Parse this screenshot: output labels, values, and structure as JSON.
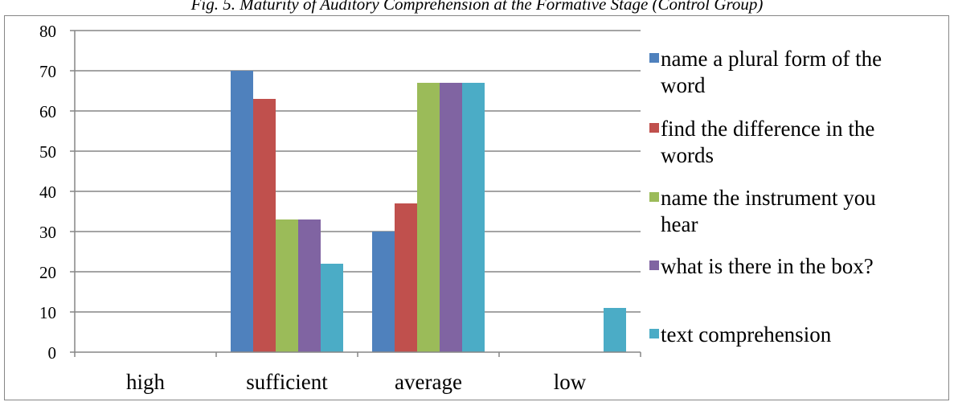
{
  "caption": "Fig. 5. Maturity of Auditory Comprehension at the Formative Stage (Control Group)",
  "chart_data": {
    "type": "bar",
    "title": "Fig. 5. Maturity of Auditory Comprehension at the Formative Stage (Control Group)",
    "xlabel": "",
    "ylabel": "",
    "categories": [
      "high",
      "sufficient",
      "average",
      "low"
    ],
    "ylim": [
      0,
      80
    ],
    "yticks": [
      0,
      10,
      20,
      30,
      40,
      50,
      60,
      70,
      80
    ],
    "grid": true,
    "legend_position": "right",
    "series": [
      {
        "name": "name a plural form of the word",
        "color": "#4F81BD",
        "values": [
          0,
          70,
          30,
          0
        ]
      },
      {
        "name": "find the difference in the words",
        "color": "#C0504D",
        "values": [
          0,
          63,
          37,
          0
        ]
      },
      {
        "name": "name the instrument you hear",
        "color": "#9BBB59",
        "values": [
          0,
          33,
          67,
          0
        ]
      },
      {
        "name": "what is there in the box?",
        "color": "#8064A2",
        "values": [
          0,
          33,
          67,
          0
        ]
      },
      {
        "name": "text comprehension",
        "color": "#4BACC6",
        "values": [
          0,
          22,
          67,
          11
        ]
      }
    ]
  }
}
